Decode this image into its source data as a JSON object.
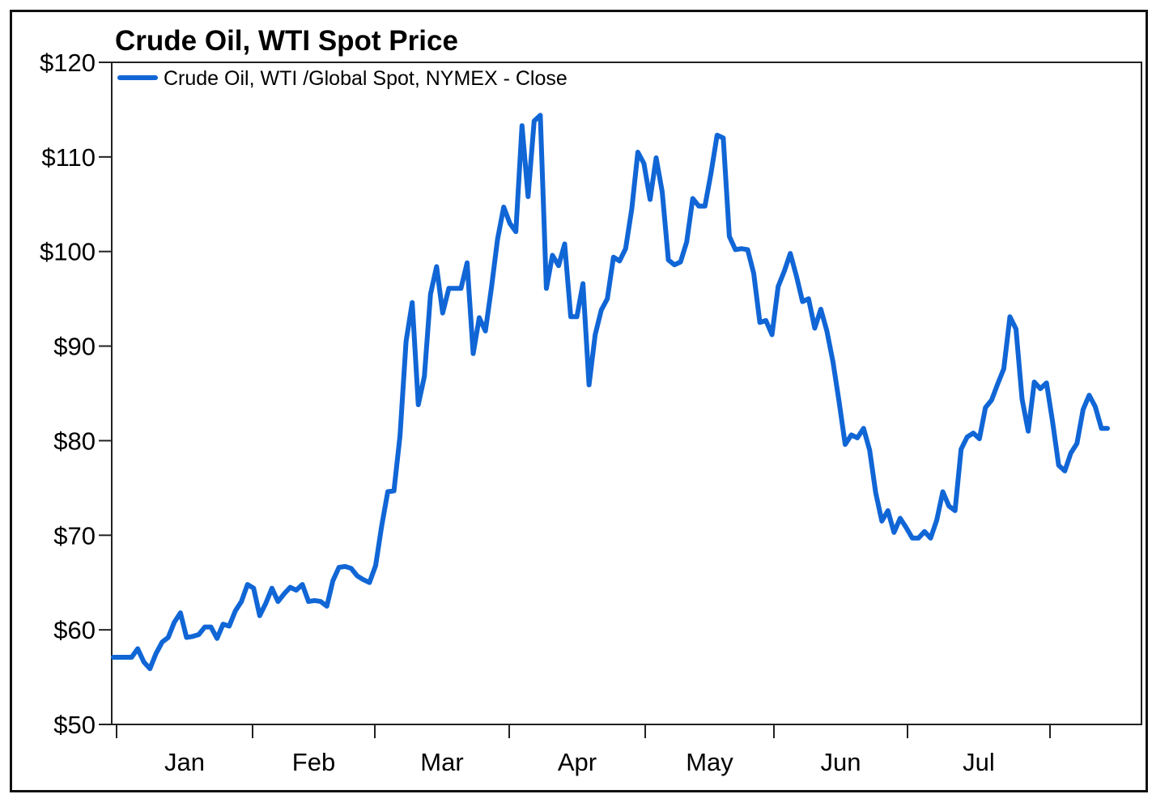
{
  "chart_data": {
    "type": "line",
    "title": "Crude Oil, WTI Spot Price",
    "xlabel": "",
    "ylabel": "",
    "ylim": [
      50,
      120
    ],
    "y_ticks": [
      50,
      60,
      70,
      80,
      90,
      100,
      110,
      120
    ],
    "y_tick_labels": [
      "$50",
      "$60",
      "$70",
      "$80",
      "$90",
      "$100",
      "$110",
      "$120"
    ],
    "x_month_labels": [
      "Jan",
      "Feb",
      "Mar",
      "Apr",
      "May",
      "Jun",
      "Jul"
    ],
    "grid": false,
    "legend_position": "top-left",
    "series": [
      {
        "name": "Crude Oil, WTI /Global Spot, NYMEX - Close",
        "color": "#1166d6",
        "values": [
          57.1,
          57.1,
          57.1,
          57.1,
          58.0,
          56.6,
          55.9,
          57.5,
          58.7,
          59.2,
          60.8,
          61.8,
          59.2,
          59.3,
          59.5,
          60.3,
          60.3,
          59.1,
          60.6,
          60.4,
          62.0,
          63.0,
          64.8,
          64.4,
          61.5,
          62.8,
          64.4,
          63.0,
          63.8,
          64.5,
          64.2,
          64.8,
          63.0,
          63.1,
          63.0,
          62.5,
          65.2,
          66.6,
          66.7,
          66.5,
          65.7,
          65.3,
          65.0,
          66.8,
          71.0,
          74.6,
          74.7,
          80.5,
          90.5,
          94.6,
          83.8,
          86.8,
          95.5,
          98.4,
          93.5,
          96.1,
          96.1,
          96.1,
          98.8,
          89.2,
          93.0,
          91.6,
          96.2,
          101.3,
          104.7,
          103.0,
          102.1,
          113.3,
          105.8,
          113.8,
          114.4,
          96.1,
          99.6,
          98.5,
          100.8,
          93.1,
          93.1,
          96.6,
          85.9,
          91.2,
          93.8,
          95.0,
          99.4,
          99.0,
          100.3,
          104.5,
          110.5,
          109.3,
          105.5,
          109.9,
          106.3,
          99.1,
          98.6,
          98.9,
          101.0,
          105.6,
          104.8,
          104.8,
          108.3,
          112.3,
          112.0,
          101.6,
          100.2,
          100.3,
          100.2,
          97.7,
          92.5,
          92.7,
          91.2,
          96.3,
          97.9,
          99.8,
          97.4,
          94.7,
          95.0,
          91.9,
          93.9,
          91.6,
          88.3,
          84.1,
          79.6,
          80.6,
          80.3,
          81.3,
          79.0,
          74.5,
          71.5,
          72.6,
          70.3,
          71.8,
          70.8,
          69.7,
          69.7,
          70.4,
          69.7,
          71.6,
          74.6,
          73.1,
          72.6,
          79.1,
          80.4,
          80.8,
          80.2,
          83.5,
          84.3,
          86.0,
          87.6,
          93.1,
          91.8,
          84.4,
          81.0,
          86.2,
          85.5,
          86.1,
          82.0,
          77.4,
          76.8,
          78.7,
          79.7,
          83.3,
          84.8,
          83.6,
          81.3,
          81.3
        ]
      }
    ]
  }
}
